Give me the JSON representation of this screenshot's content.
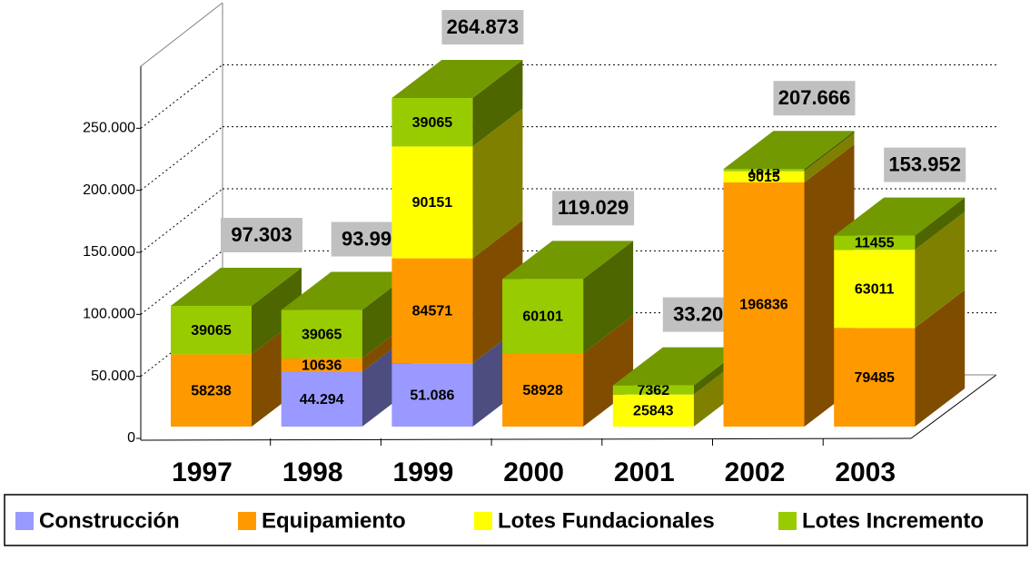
{
  "chart_data": {
    "type": "bar3d_stacked",
    "categories": [
      "1997",
      "1998",
      "1999",
      "2000",
      "2001",
      "2002",
      "2003"
    ],
    "series": [
      {
        "name": "Construcción",
        "color": "#9999ff",
        "side": "#4d4d80",
        "top": "#7a7acc",
        "values": [
          null,
          44294,
          51086,
          null,
          null,
          null,
          null
        ],
        "value_labels": [
          null,
          "44.294",
          "51.086",
          null,
          null,
          null,
          null
        ]
      },
      {
        "name": "Equipamiento",
        "color": "#ff9900",
        "side": "#804c00",
        "top": "#cc7a00",
        "values": [
          58238,
          10636,
          84571,
          58928,
          null,
          196836,
          79485
        ]
      },
      {
        "name": "Lotes Fundacionales",
        "color": "#ffff00",
        "side": "#808000",
        "top": "#cccc00",
        "values": [
          null,
          null,
          90151,
          null,
          25843,
          9015,
          63011
        ]
      },
      {
        "name": "Lotes Incremento",
        "color": "#99cc00",
        "side": "#4d6600",
        "top": "#739900",
        "values": [
          39065,
          39065,
          39065,
          60101,
          7362,
          1815,
          11455
        ]
      }
    ],
    "totals": {
      "values": [
        97303,
        93995,
        264873,
        119029,
        33205,
        207666,
        153952
      ],
      "value_labels": [
        "97.303",
        "93.995",
        "264.873",
        "119.029",
        "33.205",
        "207.666",
        "153.952"
      ]
    },
    "ylim": [
      0,
      300000
    ],
    "yticks": [
      0,
      {
        "value": 50000,
        "label": "50.000"
      },
      {
        "value": 100000,
        "label": "100.000"
      },
      {
        "value": 150000,
        "label": "150.000"
      },
      {
        "value": 200000,
        "label": "200.000"
      },
      {
        "value": 250000,
        "label": "250.000"
      }
    ],
    "grid": true,
    "legend": "bottom"
  }
}
